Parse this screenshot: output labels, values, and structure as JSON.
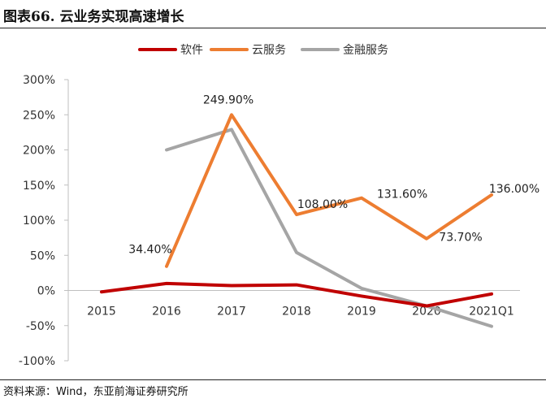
{
  "header": {
    "title": "图表66. 云业务实现高速增长"
  },
  "footer": {
    "source": "资料来源：Wind，东亚前海证券研究所"
  },
  "colors": {
    "software": "#c00000",
    "cloud": "#ed7d31",
    "fintech": "#a5a5a5",
    "axis": "#bfbfbf"
  },
  "chart_data": {
    "type": "line",
    "title": "云业务实现高速增长",
    "xlabel": "",
    "ylabel": "",
    "categories": [
      "2015",
      "2016",
      "2017",
      "2018",
      "2019",
      "2020",
      "2021Q1"
    ],
    "ylim": [
      -100,
      300
    ],
    "yticks": [
      -100,
      -50,
      0,
      50,
      100,
      150,
      200,
      250,
      300
    ],
    "ytick_labels": [
      "-100%",
      "-50%",
      "0%",
      "50%",
      "100%",
      "150%",
      "200%",
      "250%",
      "300%"
    ],
    "legend_position": "top",
    "series": [
      {
        "name": "软件",
        "color": "#c00000",
        "values": [
          -2,
          10,
          7,
          8,
          -8,
          -22,
          -5
        ],
        "labels": []
      },
      {
        "name": "云服务",
        "color": "#ed7d31",
        "values": [
          null,
          34.4,
          249.9,
          108.0,
          131.6,
          73.7,
          136.0
        ],
        "labels": [
          null,
          "34.40%",
          "249.90%",
          "108.00%",
          "131.60%",
          "73.70%",
          "136.00%"
        ]
      },
      {
        "name": "金融服务",
        "color": "#a5a5a5",
        "values": [
          null,
          200,
          229,
          54,
          3,
          -22,
          -51
        ],
        "labels": []
      }
    ]
  }
}
